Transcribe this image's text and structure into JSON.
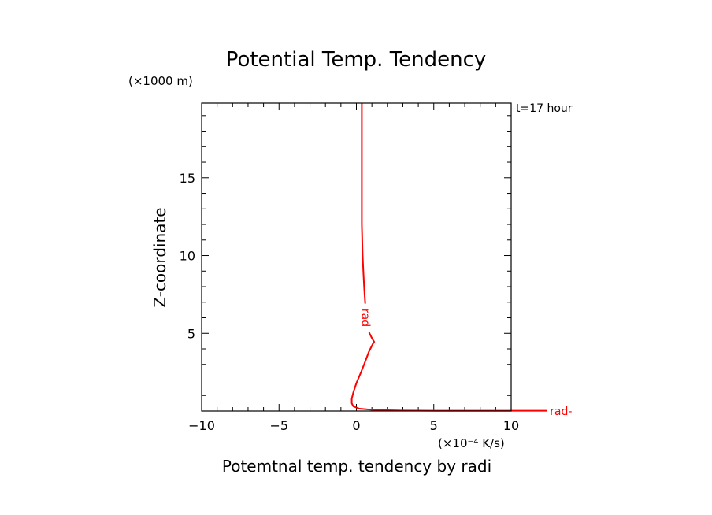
{
  "chart_data": {
    "type": "line",
    "title": "Potential Temp. Tendency",
    "xlabel": "Potemtnal temp. tendency by radi",
    "ylabel": "Z-coordinate",
    "x_unit": "(×10⁻⁴ K/s)",
    "y_unit": "(×1000 m)",
    "time_label": "t=17 hour",
    "xlim": [
      -10,
      10
    ],
    "ylim": [
      0,
      19.8
    ],
    "x_ticks": [
      -10,
      -5,
      0,
      5,
      10
    ],
    "y_ticks": [
      5,
      10,
      15
    ],
    "grid": false,
    "series": [
      {
        "name": "rad",
        "color": "#ff0000",
        "x": [
          14.0,
          10.0,
          5.0,
          3.0,
          2.0,
          1.0,
          0.2,
          -0.2,
          -0.3,
          -0.3,
          -0.2,
          0.0,
          0.3,
          0.5,
          0.65,
          0.8,
          0.95,
          1.05,
          1.15,
          1.0,
          0.85,
          0.75,
          0.7,
          0.65,
          0.6,
          0.55,
          0.5,
          0.45,
          0.4,
          0.35,
          0.35
        ],
        "y": [
          0.02,
          0.02,
          0.02,
          0.03,
          0.05,
          0.08,
          0.15,
          0.3,
          0.5,
          0.8,
          1.2,
          1.8,
          2.5,
          3.0,
          3.4,
          3.8,
          4.1,
          4.3,
          4.45,
          4.7,
          5.0,
          5.3,
          5.6,
          6.0,
          6.5,
          7.2,
          8.0,
          9.0,
          10.0,
          12.0,
          19.8
        ]
      }
    ],
    "line_labels": [
      {
        "text": "rad",
        "x": 0.6,
        "y": 6.0,
        "rotated": true
      },
      {
        "text": "rad-",
        "x": 12.5,
        "y": 0.0,
        "rotated": false
      }
    ]
  }
}
